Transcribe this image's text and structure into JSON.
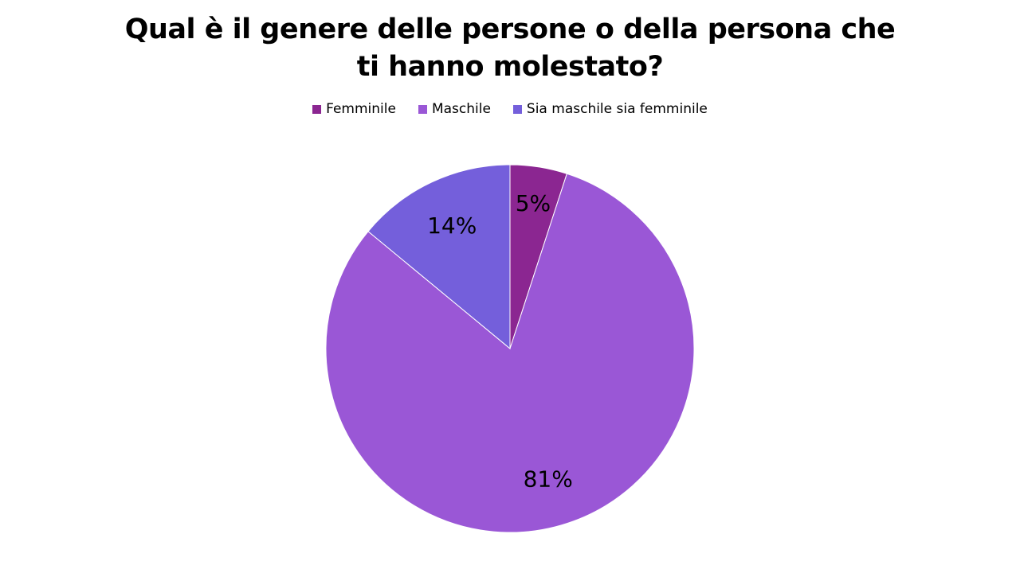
{
  "chart_data": {
    "type": "pie",
    "title": "Qual è il genere delle persone o della persona che ti hanno molestato?",
    "legend_position": "top",
    "slices": [
      {
        "name": "Femminile",
        "value": 5,
        "label": "5%",
        "color": "#8b2691"
      },
      {
        "name": "Maschile",
        "value": 81,
        "label": "81%",
        "color": "#9a57d6"
      },
      {
        "name": "Sia maschile sia femminile",
        "value": 14,
        "label": "14%",
        "color": "#745fdb"
      }
    ]
  }
}
